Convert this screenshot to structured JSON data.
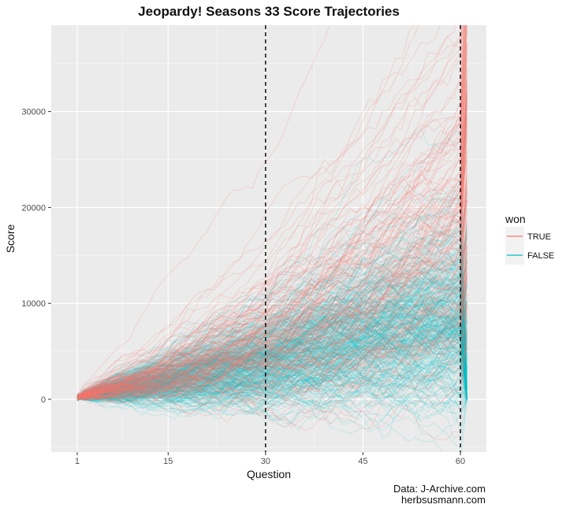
{
  "chart_data": {
    "type": "line",
    "title": "Jeopardy! Seasons 33 Score Trajectories",
    "xlabel": "Question",
    "ylabel": "Score",
    "xlim": [
      -3,
      64
    ],
    "ylim": [
      -5500,
      39000
    ],
    "x_ticks": [
      1,
      15,
      30,
      45,
      60
    ],
    "x_tick_labels": [
      "1",
      "15",
      "30",
      "45",
      "60"
    ],
    "x_minor_ticks": [
      8,
      22.5,
      37.5,
      52.5
    ],
    "y_ticks": [
      0,
      10000,
      20000,
      30000
    ],
    "y_tick_labels": [
      "0",
      "10000",
      "20000",
      "30000"
    ],
    "y_minor_ticks": [
      -5000,
      5000,
      15000,
      25000,
      35000
    ],
    "vlines": [
      30,
      60
    ],
    "final_question": 61,
    "legend": {
      "title": "won",
      "placement": "right",
      "entries": [
        {
          "label": "TRUE",
          "color": "#F8766D"
        },
        {
          "label": "FALSE",
          "color": "#00BFC4"
        }
      ]
    },
    "series": [
      {
        "won": "TRUE",
        "color": "#F8766D",
        "summary_points": [
          [
            1,
            200
          ],
          [
            15,
            2500
          ],
          [
            30,
            5500
          ],
          [
            45,
            10000
          ],
          [
            60,
            16000
          ],
          [
            61,
            19000
          ]
        ]
      },
      {
        "won": "FALSE",
        "color": "#00BFC4",
        "summary_points": [
          [
            1,
            200
          ],
          [
            15,
            1800
          ],
          [
            30,
            3500
          ],
          [
            45,
            6500
          ],
          [
            60,
            8000
          ],
          [
            61,
            2500
          ]
        ]
      }
    ],
    "grid": true,
    "caption_lines": [
      "Data: J-Archive.com",
      "herbsusmann.com"
    ]
  }
}
